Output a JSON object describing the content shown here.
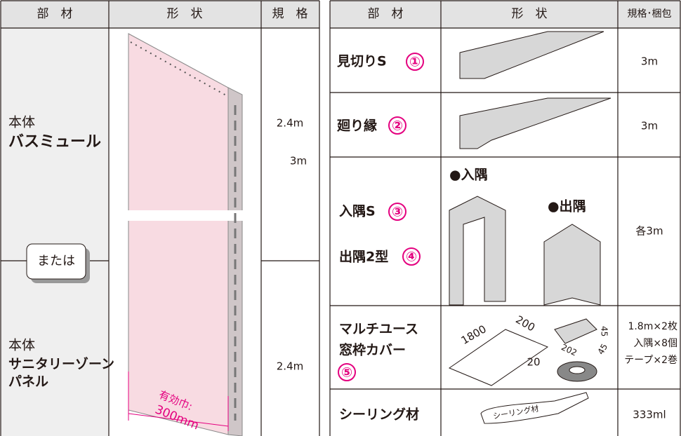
{
  "left_table": {
    "headers": [
      "部　材",
      "形　状",
      "規　格"
    ],
    "rows": [
      {
        "name": [
          "本体",
          "バスミュール"
        ],
        "spec": [
          "2.4m",
          "3m"
        ]
      },
      {
        "name": [
          "本体",
          "サニタリーゾーン",
          "パネル"
        ],
        "spec": [
          "2.4m"
        ]
      }
    ],
    "or_label": "または",
    "panel_label": [
      "有効巾:",
      "300mm"
    ]
  },
  "right_table": {
    "headers": [
      "部　材",
      "形　状",
      "規格･梱包"
    ],
    "rows": [
      {
        "name": "見切りS",
        "number": "①",
        "spec": "3m"
      },
      {
        "name": "廻り縁",
        "number": "②",
        "spec": "3m"
      },
      {
        "items": [
          {
            "name": "入隅S",
            "number": "③"
          },
          {
            "name": "出隅2型",
            "number": "④"
          }
        ],
        "shape_labels": [
          "●入隅",
          "●出隅"
        ],
        "spec": "各3m"
      },
      {
        "name": [
          "マルチユース",
          "窓枠カバー"
        ],
        "number": "⑤",
        "dimensions": [
          "1800",
          "200",
          "202",
          "45",
          "20",
          "45"
        ],
        "spec": [
          "1.8m×2枚",
          "入隅×8個",
          "テープ×2巻"
        ]
      },
      {
        "name": "シーリング材",
        "tube_label": "シーリング材",
        "spec": "333ml"
      }
    ]
  }
}
